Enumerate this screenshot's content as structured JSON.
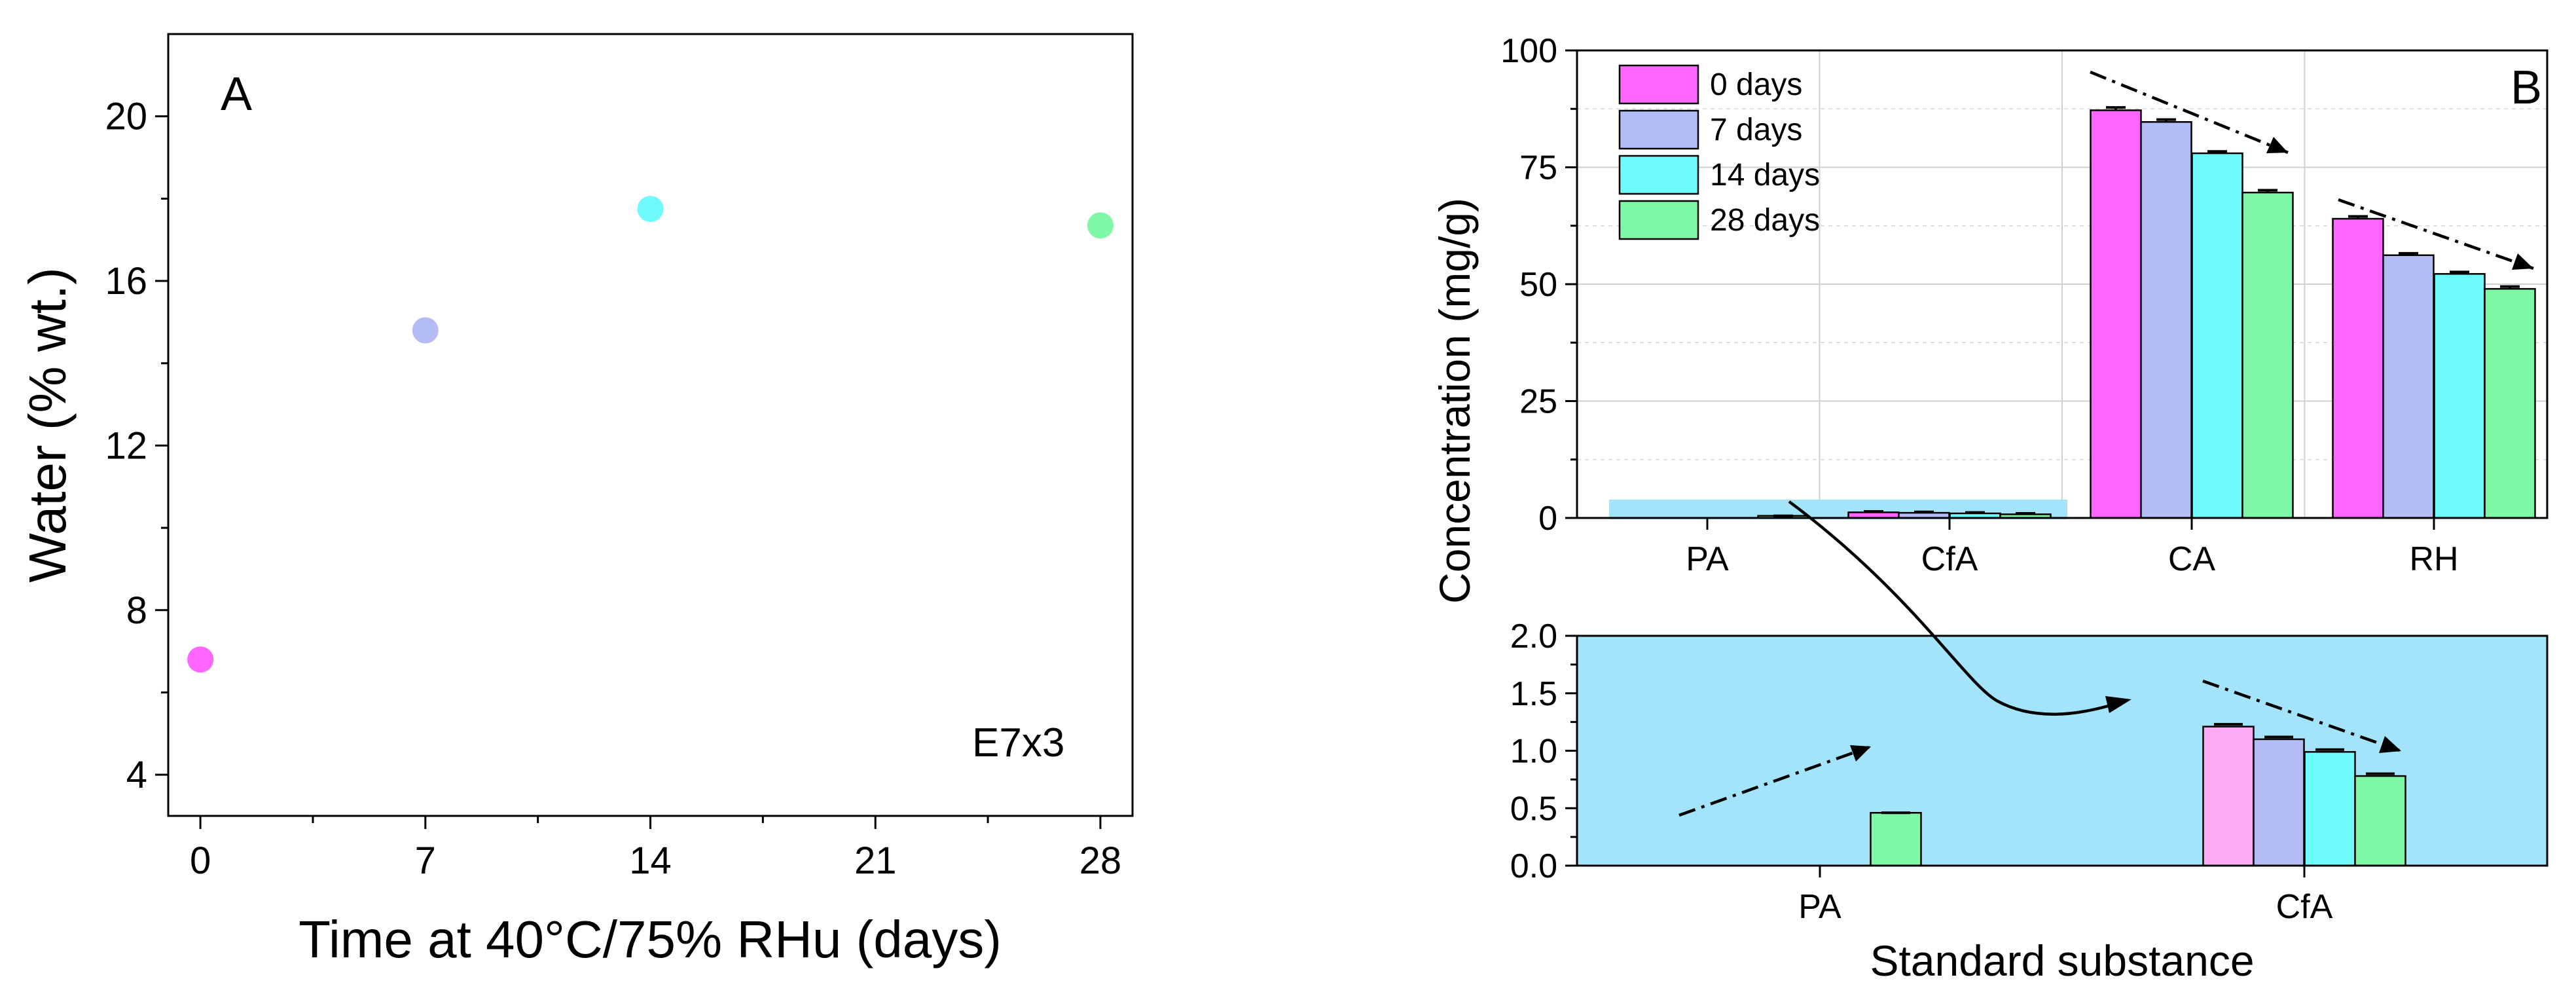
{
  "colors": {
    "0 days": "#ff66ff",
    "7 days": "#b4bcf6",
    "14 days": "#6ffbfb",
    "28 days": "#7ef8a6",
    "inset_background": "#a3e4fb",
    "inset_0_days": "#ffabf5"
  },
  "chart_data": [
    {
      "type": "scatter",
      "panel_label": "A",
      "annotation": "E7x3",
      "xlabel": "Time at 40°C/75% RHu (days)",
      "ylabel": "Water (% wt.)",
      "xlim": [
        -1,
        29
      ],
      "ylim": [
        3,
        22
      ],
      "xticks": [
        0,
        7,
        14,
        21,
        28
      ],
      "yticks": [
        4,
        8,
        12,
        16,
        20
      ],
      "points": [
        {
          "x": 0,
          "y": 6.8,
          "group": "0 days"
        },
        {
          "x": 7,
          "y": 14.8,
          "group": "7 days"
        },
        {
          "x": 14,
          "y": 17.75,
          "group": "14 days"
        },
        {
          "x": 28,
          "y": 17.35,
          "group": "28 days"
        }
      ]
    },
    {
      "type": "bar",
      "panel_label": "B",
      "ylabel": "Concentration (mg/g)",
      "ylim": [
        0,
        100
      ],
      "yticks": [
        0,
        25,
        50,
        75,
        100
      ],
      "categories": [
        "PA",
        "CfA",
        "CA",
        "RH"
      ],
      "legend": {
        "position": "top-left",
        "entries": [
          "0 days",
          "7 days",
          "14 days",
          "28 days"
        ]
      },
      "series": [
        {
          "name": "0 days",
          "values": [
            0,
            1.2,
            87.2,
            64.0
          ],
          "errors": [
            0,
            0.2,
            0.6,
            0.5
          ]
        },
        {
          "name": "7 days",
          "values": [
            0,
            1.1,
            84.7,
            56.2
          ],
          "errors": [
            0,
            0.2,
            0.5,
            0.4
          ]
        },
        {
          "name": "14 days",
          "values": [
            0,
            0.98,
            78.0,
            52.2
          ],
          "errors": [
            0,
            0.2,
            0.4,
            0.4
          ]
        },
        {
          "name": "28 days",
          "values": [
            0.46,
            0.78,
            69.6,
            49.0
          ],
          "errors": [
            0,
            0.2,
            0.5,
            0.5
          ]
        }
      ]
    },
    {
      "type": "bar",
      "panel_label": "B inset",
      "xlabel": "Standard substance",
      "ylim": [
        0,
        2.0
      ],
      "yticks": [
        0.0,
        0.5,
        1.0,
        1.5,
        2.0
      ],
      "categories": [
        "PA",
        "CfA"
      ],
      "series": [
        {
          "name": "0 days",
          "values": [
            0,
            1.21
          ],
          "errors": [
            0,
            0.02
          ]
        },
        {
          "name": "7 days",
          "values": [
            0,
            1.1
          ],
          "errors": [
            0,
            0.02
          ]
        },
        {
          "name": "14 days",
          "values": [
            0,
            0.99
          ],
          "errors": [
            0,
            0.02
          ]
        },
        {
          "name": "28 days",
          "values": [
            0.46,
            0.78
          ],
          "errors": [
            0,
            0.02
          ]
        }
      ]
    }
  ]
}
